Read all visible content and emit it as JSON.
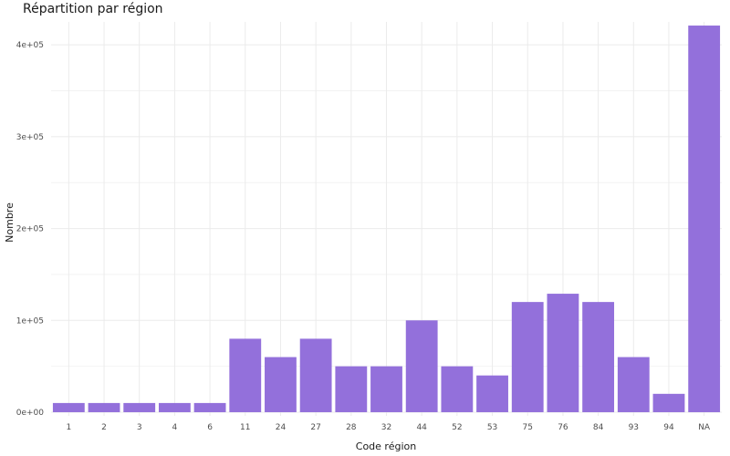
{
  "chart_data": {
    "type": "bar",
    "title": "Répartition par région",
    "xlabel": "Code région",
    "ylabel": "Nombre",
    "categories": [
      "1",
      "2",
      "3",
      "4",
      "6",
      "11",
      "24",
      "27",
      "28",
      "32",
      "44",
      "52",
      "53",
      "75",
      "76",
      "84",
      "93",
      "94",
      "NA"
    ],
    "values": [
      10000,
      10000,
      10000,
      10000,
      10000,
      80000,
      60000,
      80000,
      50000,
      50000,
      100000,
      50000,
      40000,
      120000,
      129000,
      120000,
      60000,
      20000,
      421000
    ],
    "ylim": [
      -4000,
      425000
    ],
    "yticks": [
      0,
      100000,
      200000,
      300000,
      400000
    ],
    "ytick_labels": [
      "0e+00",
      "1e+05",
      "2e+05",
      "3e+05",
      "4e+05"
    ],
    "grid": true,
    "bar_color": "#9370DB",
    "grid_color": "#ebebeb"
  }
}
